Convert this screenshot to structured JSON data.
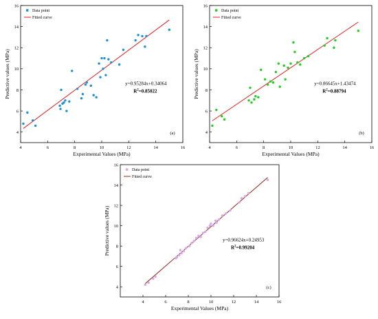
{
  "chart_data": [
    {
      "type": "scatter",
      "panel_label": "(a)",
      "xlabel": "Experimental Values (MPa)",
      "ylabel": "Predictive values (MPa)",
      "xlim": [
        4,
        16
      ],
      "ylim": [
        3,
        16
      ],
      "xticks": [
        4,
        6,
        8,
        10,
        12,
        14,
        16
      ],
      "yticks": [
        4,
        6,
        8,
        10,
        12,
        14,
        16
      ],
      "grid": false,
      "legend_position": "top-left",
      "equation": "y=0.95284x+0.34064",
      "r2_prefix": "R",
      "r2_sup": "2",
      "r2_value": "=0.85022",
      "colors": {
        "points": "#1f8fce",
        "line": "#e02020"
      },
      "series": [
        {
          "name": "Data point",
          "kind": "points",
          "points": [
            [
              4.2,
              4.8
            ],
            [
              4.5,
              5.85
            ],
            [
              4.9,
              5.1
            ],
            [
              5.1,
              4.6
            ],
            [
              6.9,
              6.5
            ],
            [
              6.95,
              6.2
            ],
            [
              7.0,
              8.0
            ],
            [
              7.1,
              6.7
            ],
            [
              7.2,
              6.8
            ],
            [
              7.3,
              7.0
            ],
            [
              7.4,
              6.0
            ],
            [
              7.6,
              6.9
            ],
            [
              7.8,
              9.8
            ],
            [
              8.2,
              8.1
            ],
            [
              8.5,
              7.2
            ],
            [
              8.6,
              7.6
            ],
            [
              8.8,
              8.5
            ],
            [
              8.9,
              8.7
            ],
            [
              9.2,
              8.4
            ],
            [
              9.4,
              7.5
            ],
            [
              9.6,
              7.3
            ],
            [
              9.8,
              10.5
            ],
            [
              9.9,
              9.2
            ],
            [
              10.0,
              11.0
            ],
            [
              10.1,
              10.0
            ],
            [
              10.2,
              11.0
            ],
            [
              10.3,
              9.4
            ],
            [
              10.4,
              12.7
            ],
            [
              10.5,
              10.9
            ],
            [
              10.7,
              10.6
            ],
            [
              11.3,
              10.4
            ],
            [
              11.6,
              11.8
            ],
            [
              12.5,
              12.7
            ],
            [
              12.7,
              13.2
            ],
            [
              13.0,
              13.1
            ],
            [
              13.2,
              12.1
            ],
            [
              13.3,
              13.1
            ],
            [
              15.0,
              13.7
            ]
          ]
        },
        {
          "name": "Fitted curve",
          "kind": "fit",
          "slope": 0.95284,
          "intercept": 0.34064,
          "x_range": [
            4.2,
            15.0
          ]
        }
      ]
    },
    {
      "type": "scatter",
      "panel_label": "(b)",
      "xlabel": "Experimental Values (MPa)",
      "ylabel": "Predictive values (MPa)",
      "xlim": [
        4,
        16
      ],
      "ylim": [
        3,
        16
      ],
      "xticks": [
        4,
        6,
        8,
        10,
        12,
        14,
        16
      ],
      "yticks": [
        4,
        6,
        8,
        10,
        12,
        14,
        16
      ],
      "grid": false,
      "legend_position": "top-left",
      "equation": "y=0.86645x+1.43474",
      "r2_prefix": "R",
      "r2_sup": "2",
      "r2_value": "=0.88794",
      "colors": {
        "points": "#22cc22",
        "line": "#e02020"
      },
      "series": [
        {
          "name": "Data point",
          "kind": "points",
          "points": [
            [
              4.2,
              4.6
            ],
            [
              4.5,
              6.1
            ],
            [
              4.9,
              5.5
            ],
            [
              5.1,
              5.2
            ],
            [
              6.9,
              7.0
            ],
            [
              7.0,
              8.2
            ],
            [
              7.1,
              6.8
            ],
            [
              7.3,
              7.1
            ],
            [
              7.4,
              7.4
            ],
            [
              7.6,
              7.3
            ],
            [
              7.8,
              9.9
            ],
            [
              8.1,
              9.0
            ],
            [
              8.3,
              8.5
            ],
            [
              8.5,
              8.8
            ],
            [
              8.7,
              8.7
            ],
            [
              8.9,
              9.7
            ],
            [
              9.1,
              10.5
            ],
            [
              9.2,
              8.3
            ],
            [
              9.5,
              10.3
            ],
            [
              9.6,
              9.0
            ],
            [
              9.8,
              10.1
            ],
            [
              10.0,
              10.5
            ],
            [
              10.2,
              12.5
            ],
            [
              10.3,
              11.6
            ],
            [
              10.5,
              10.6
            ],
            [
              10.7,
              10.4
            ],
            [
              11.0,
              11.0
            ],
            [
              11.3,
              11.2
            ],
            [
              12.5,
              12.2
            ],
            [
              12.7,
              12.9
            ],
            [
              13.2,
              12.0
            ],
            [
              13.3,
              12.7
            ],
            [
              15.0,
              13.6
            ]
          ]
        },
        {
          "name": "Fitted curve",
          "kind": "fit",
          "slope": 0.86645,
          "intercept": 1.43474,
          "x_range": [
            4.2,
            15.0
          ]
        }
      ]
    },
    {
      "type": "scatter",
      "panel_label": "(c)",
      "xlabel": "Experimental Values (MPa)",
      "ylabel": "Predictive values (MPa)",
      "xlim": [
        2,
        16
      ],
      "ylim": [
        3,
        16
      ],
      "xticks": [
        4,
        6,
        8,
        10,
        12,
        14,
        16
      ],
      "yticks": [
        4,
        6,
        8,
        10,
        12,
        14,
        16
      ],
      "grid": false,
      "legend_position": "top-left",
      "equation": "y=0.96624x+0.24953",
      "r2_prefix": "R",
      "r2_sup": "2",
      "r2_value": "=0.99204",
      "colors": {
        "points": "#d9a6e8",
        "line": "#8b2a1a"
      },
      "series": [
        {
          "name": "Data point",
          "kind": "points",
          "points": [
            [
              4.2,
              4.2
            ],
            [
              4.5,
              4.4
            ],
            [
              4.9,
              4.8
            ],
            [
              5.1,
              5.0
            ],
            [
              6.9,
              6.8
            ],
            [
              7.0,
              6.9
            ],
            [
              7.2,
              7.1
            ],
            [
              7.3,
              7.6
            ],
            [
              7.4,
              7.3
            ],
            [
              7.6,
              7.5
            ],
            [
              7.8,
              7.8
            ],
            [
              8.1,
              8.0
            ],
            [
              8.3,
              8.3
            ],
            [
              8.5,
              8.5
            ],
            [
              8.7,
              8.8
            ],
            [
              8.9,
              9.0
            ],
            [
              9.1,
              8.9
            ],
            [
              9.3,
              9.3
            ],
            [
              9.5,
              9.4
            ],
            [
              9.7,
              9.8
            ],
            [
              9.9,
              10.0
            ],
            [
              10.0,
              10.2
            ],
            [
              10.2,
              10.0
            ],
            [
              10.4,
              10.5
            ],
            [
              10.5,
              10.3
            ],
            [
              10.7,
              10.6
            ],
            [
              11.0,
              11.0
            ],
            [
              11.3,
              11.2
            ],
            [
              11.7,
              11.5
            ],
            [
              12.5,
              12.3
            ],
            [
              12.7,
              12.7
            ],
            [
              13.0,
              12.9
            ],
            [
              13.3,
              13.2
            ],
            [
              15.0,
              14.5
            ]
          ]
        },
        {
          "name": "Fitted curve",
          "kind": "fit",
          "slope": 0.96624,
          "intercept": 0.24953,
          "x_range": [
            4.2,
            15.0
          ]
        }
      ]
    }
  ]
}
